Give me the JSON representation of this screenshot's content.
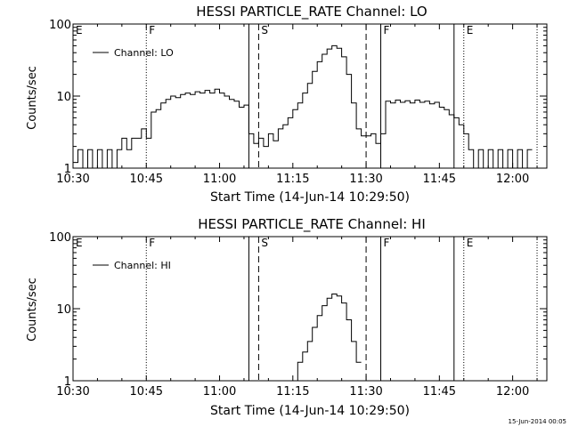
{
  "chart_data": [
    {
      "type": "line",
      "title": "HESSI PARTICLE_RATE Channel: LO",
      "xlabel": "Start Time (14-Jun-14 10:29:50)",
      "ylabel": "Counts/sec",
      "yscale": "log",
      "ylim": [
        1,
        100
      ],
      "xlim": [
        "10:30",
        "12:07"
      ],
      "x_ticks": [
        "10:30",
        "10:45",
        "11:00",
        "11:15",
        "11:30",
        "11:45",
        "12:00"
      ],
      "y_ticks": [
        "1",
        "10",
        "100"
      ],
      "legend": {
        "position": "top-left",
        "entries": [
          "Channel: LO"
        ]
      },
      "series": [
        {
          "name": "Channel: LO",
          "points": [
            [
              "10:30",
              1.2
            ],
            [
              "10:31",
              1.8
            ],
            [
              "10:32",
              1.0
            ],
            [
              "10:33",
              1.8
            ],
            [
              "10:34",
              1.0
            ],
            [
              "10:35",
              1.8
            ],
            [
              "10:36",
              1.0
            ],
            [
              "10:37",
              1.8
            ],
            [
              "10:38",
              1.0
            ],
            [
              "10:39",
              1.8
            ],
            [
              "10:40",
              2.6
            ],
            [
              "10:41",
              1.8
            ],
            [
              "10:42",
              2.6
            ],
            [
              "10:43",
              2.6
            ],
            [
              "10:44",
              3.5
            ],
            [
              "10:45",
              2.6
            ],
            [
              "10:46",
              6.0
            ],
            [
              "10:47",
              6.5
            ],
            [
              "10:48",
              8.0
            ],
            [
              "10:49",
              9.0
            ],
            [
              "10:50",
              10.0
            ],
            [
              "10:51",
              9.5
            ],
            [
              "10:52",
              10.5
            ],
            [
              "10:53",
              11.0
            ],
            [
              "10:54",
              10.5
            ],
            [
              "10:55",
              11.5
            ],
            [
              "10:56",
              11.0
            ],
            [
              "10:57",
              12.0
            ],
            [
              "10:58",
              11.0
            ],
            [
              "10:59",
              12.5
            ],
            [
              "11:00",
              11.0
            ],
            [
              "11:01",
              10.0
            ],
            [
              "11:02",
              9.0
            ],
            [
              "11:03",
              8.5
            ],
            [
              "11:04",
              7.0
            ],
            [
              "11:05",
              7.5
            ],
            [
              "11:06",
              3.0
            ],
            [
              "11:07",
              2.2
            ],
            [
              "11:08",
              2.6
            ],
            [
              "11:09",
              2.0
            ],
            [
              "11:10",
              3.0
            ],
            [
              "11:11",
              2.4
            ],
            [
              "11:12",
              3.5
            ],
            [
              "11:13",
              4.0
            ],
            [
              "11:14",
              5.0
            ],
            [
              "11:15",
              6.5
            ],
            [
              "11:16",
              8.0
            ],
            [
              "11:17",
              11.0
            ],
            [
              "11:18",
              15.0
            ],
            [
              "11:19",
              22.0
            ],
            [
              "11:20",
              30.0
            ],
            [
              "11:21",
              38.0
            ],
            [
              "11:22",
              45.0
            ],
            [
              "11:23",
              50.0
            ],
            [
              "11:24",
              46.0
            ],
            [
              "11:25",
              35.0
            ],
            [
              "11:26",
              20.0
            ],
            [
              "11:27",
              8.0
            ],
            [
              "11:28",
              3.5
            ],
            [
              "11:29",
              2.8
            ],
            [
              "11:30",
              2.8
            ],
            [
              "11:31",
              3.0
            ],
            [
              "11:32",
              2.2
            ],
            [
              "11:33",
              3.0
            ],
            [
              "11:34",
              8.5
            ],
            [
              "11:35",
              8.0
            ],
            [
              "11:36",
              8.8
            ],
            [
              "11:37",
              8.2
            ],
            [
              "11:38",
              8.6
            ],
            [
              "11:39",
              8.0
            ],
            [
              "11:40",
              8.8
            ],
            [
              "11:41",
              8.2
            ],
            [
              "11:42",
              8.5
            ],
            [
              "11:43",
              7.8
            ],
            [
              "11:44",
              8.2
            ],
            [
              "11:45",
              7.0
            ],
            [
              "11:46",
              6.5
            ],
            [
              "11:47",
              5.5
            ],
            [
              "11:48",
              5.0
            ],
            [
              "11:49",
              4.0
            ],
            [
              "11:50",
              3.0
            ],
            [
              "11:51",
              1.8
            ],
            [
              "11:52",
              1.0
            ],
            [
              "11:53",
              1.8
            ],
            [
              "11:54",
              1.0
            ],
            [
              "11:55",
              1.8
            ],
            [
              "11:56",
              1.0
            ],
            [
              "11:57",
              1.8
            ],
            [
              "11:58",
              1.0
            ],
            [
              "11:59",
              1.8
            ],
            [
              "12:00",
              1.0
            ],
            [
              "12:01",
              1.8
            ],
            [
              "12:02",
              1.0
            ],
            [
              "12:03",
              1.8
            ]
          ]
        }
      ],
      "annotations": [
        {
          "label": "E",
          "time": "10:30",
          "style": "none"
        },
        {
          "label": "F",
          "time": "10:45",
          "style": "dotted"
        },
        {
          "label": "",
          "time": "11:06",
          "style": "solid"
        },
        {
          "label": "S",
          "time": "11:08",
          "style": "dashed"
        },
        {
          "label": "",
          "time": "11:30",
          "style": "dashed"
        },
        {
          "label": "F",
          "time": "11:33",
          "style": "solid"
        },
        {
          "label": "",
          "time": "11:48",
          "style": "solid"
        },
        {
          "label": "E",
          "time": "11:50",
          "style": "dotted"
        },
        {
          "label": "",
          "time": "12:05",
          "style": "dotted"
        }
      ],
      "grid": false
    },
    {
      "type": "line",
      "title": "HESSI PARTICLE_RATE Channel: HI",
      "xlabel": "Start Time (14-Jun-14 10:29:50)",
      "ylabel": "Counts/sec",
      "yscale": "log",
      "ylim": [
        1,
        100
      ],
      "xlim": [
        "10:30",
        "12:07"
      ],
      "x_ticks": [
        "10:30",
        "10:45",
        "11:00",
        "11:15",
        "11:30",
        "11:45",
        "12:00"
      ],
      "y_ticks": [
        "1",
        "10",
        "100"
      ],
      "legend": {
        "position": "top-left",
        "entries": [
          "Channel: HI"
        ]
      },
      "series": [
        {
          "name": "Channel: HI",
          "points": [
            [
              "11:15",
              1.0
            ],
            [
              "11:16",
              1.8
            ],
            [
              "11:17",
              2.5
            ],
            [
              "11:18",
              3.5
            ],
            [
              "11:19",
              5.5
            ],
            [
              "11:20",
              8.0
            ],
            [
              "11:21",
              11.0
            ],
            [
              "11:22",
              14.0
            ],
            [
              "11:23",
              16.0
            ],
            [
              "11:24",
              15.0
            ],
            [
              "11:25",
              12.0
            ],
            [
              "11:26",
              7.0
            ],
            [
              "11:27",
              3.5
            ],
            [
              "11:28",
              1.8
            ]
          ]
        }
      ],
      "annotations": [
        {
          "label": "E",
          "time": "10:30",
          "style": "none"
        },
        {
          "label": "F",
          "time": "10:45",
          "style": "dotted"
        },
        {
          "label": "",
          "time": "11:06",
          "style": "solid"
        },
        {
          "label": "S",
          "time": "11:08",
          "style": "dashed"
        },
        {
          "label": "",
          "time": "11:30",
          "style": "dashed"
        },
        {
          "label": "F",
          "time": "11:33",
          "style": "solid"
        },
        {
          "label": "",
          "time": "11:48",
          "style": "solid"
        },
        {
          "label": "E",
          "time": "11:50",
          "style": "dotted"
        },
        {
          "label": "",
          "time": "12:05",
          "style": "dotted"
        }
      ],
      "grid": false
    }
  ],
  "footer": {
    "stamp": "15-Jun-2014 00:05"
  }
}
